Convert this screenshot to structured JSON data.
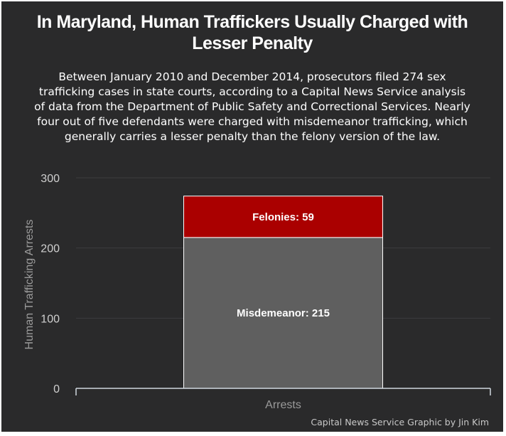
{
  "chart_data": {
    "type": "bar",
    "stacked": true,
    "title": "In Maryland, Human Traffickers Usually Charged with Lesser Penalty",
    "subtitle": "Between January 2010 and December 2014, prosecutors filed 274 sex trafficking cases in state courts, according to a Capital News Service analysis of data from the Department of Public Safety and Correctional Services. Nearly four out of five defendants were charged with misdemeanor trafficking, which generally carries a lesser penalty than the felony version of the law.",
    "categories": [
      "Arrests"
    ],
    "series": [
      {
        "name": "Misdemeanor",
        "values": [
          215
        ],
        "color": "#5f5f5f",
        "label": "Misdemeanor: 215"
      },
      {
        "name": "Felonies",
        "values": [
          59
        ],
        "color": "#aa0000",
        "label": "Felonies: 59"
      }
    ],
    "xlabel": "",
    "ylabel": "Human Trafficking Arrests",
    "ylim": [
      0,
      300
    ],
    "yticks": [
      "0",
      "100",
      "200",
      "300"
    ],
    "grid": true,
    "legend": "none",
    "credit": "Capital News Service Graphic by Jin Kim"
  }
}
